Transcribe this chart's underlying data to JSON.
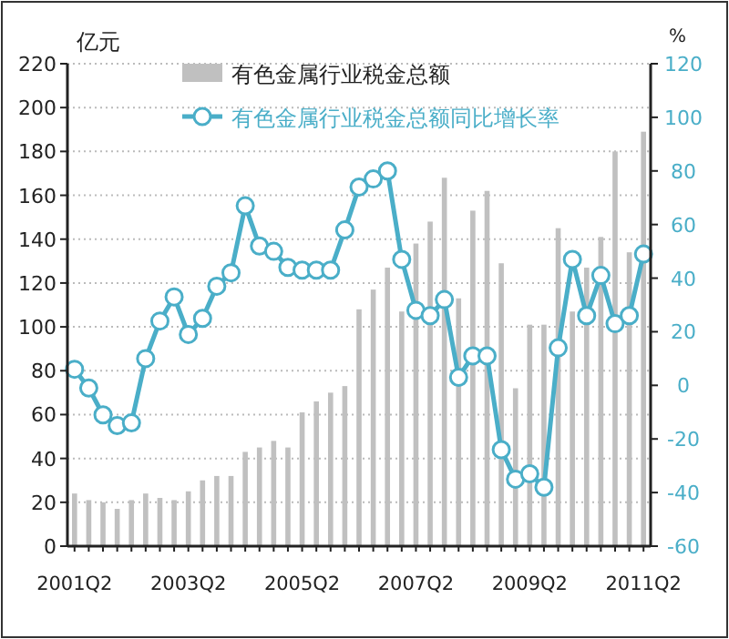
{
  "chart_data": {
    "type": "bar",
    "categories": [
      "2001Q2",
      null,
      null,
      null,
      null,
      null,
      null,
      null,
      "2003Q2",
      null,
      null,
      null,
      null,
      null,
      null,
      null,
      "2005Q2",
      null,
      null,
      null,
      null,
      null,
      null,
      null,
      "2007Q2",
      null,
      null,
      null,
      null,
      null,
      null,
      null,
      "2009Q2",
      null,
      null,
      null,
      null,
      null,
      null,
      null,
      "2011Q2"
    ],
    "ylabel": "亿元",
    "y2label": "%",
    "ylim": [
      0,
      220
    ],
    "yticks": [
      0,
      20,
      40,
      60,
      80,
      100,
      120,
      140,
      160,
      180,
      200,
      220
    ],
    "y2lim": [
      -60,
      120
    ],
    "y2ticks": [
      -60,
      -40,
      -20,
      0,
      20,
      40,
      60,
      80,
      100,
      120
    ],
    "grid": "y",
    "legend": "top",
    "marker": "circle",
    "line_style": "solid",
    "series": [
      {
        "name": "有色金属行业税金总额",
        "color": "#c0c0c0",
        "values": [
          24,
          21,
          20,
          17,
          21,
          24,
          22,
          21,
          25,
          30,
          32,
          32,
          43,
          45,
          48,
          45,
          61,
          66,
          70,
          73,
          108,
          117,
          127,
          107,
          138,
          148,
          168,
          113,
          153,
          162,
          129,
          72,
          101,
          101,
          145,
          107,
          127,
          141,
          180,
          134,
          189
        ]
      },
      {
        "name": "有色金属行业税金总额同比增长率",
        "type": "line",
        "axis": "y2",
        "color": "#4aaec8",
        "values": [
          6,
          -1,
          -11,
          -15,
          -14,
          10,
          24,
          33,
          19,
          25,
          37,
          42,
          67,
          52,
          50,
          44,
          43,
          43,
          43,
          58,
          74,
          77,
          80,
          47,
          28,
          26,
          32,
          3,
          11,
          11,
          -24,
          -35,
          -33,
          -38,
          14,
          47,
          26,
          41,
          23,
          26,
          49
        ]
      }
    ]
  }
}
